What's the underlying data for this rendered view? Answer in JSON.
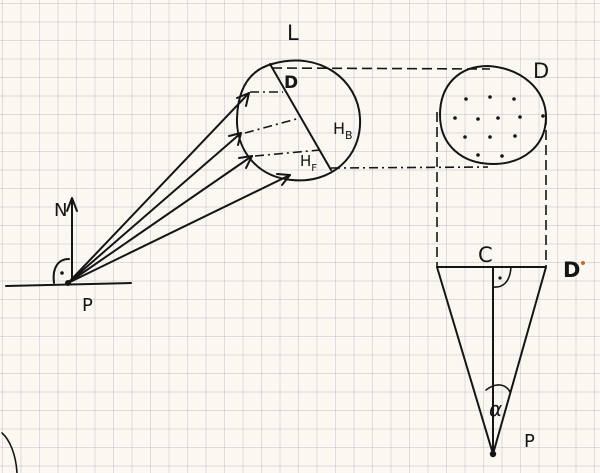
{
  "colors": {
    "paper": "#fbf8f2",
    "grid": "#a79fc0",
    "ink": "#151515"
  },
  "labels": {
    "normal": "N",
    "point_left": "P",
    "lens": "L",
    "diameter_in_lens": "D",
    "h_back": "H",
    "h_back_sub": "B",
    "h_front": "H",
    "h_front_sub": "F",
    "disk": "D",
    "center": "C",
    "diameter_line": "D",
    "alpha": "α",
    "point_right": "P"
  }
}
